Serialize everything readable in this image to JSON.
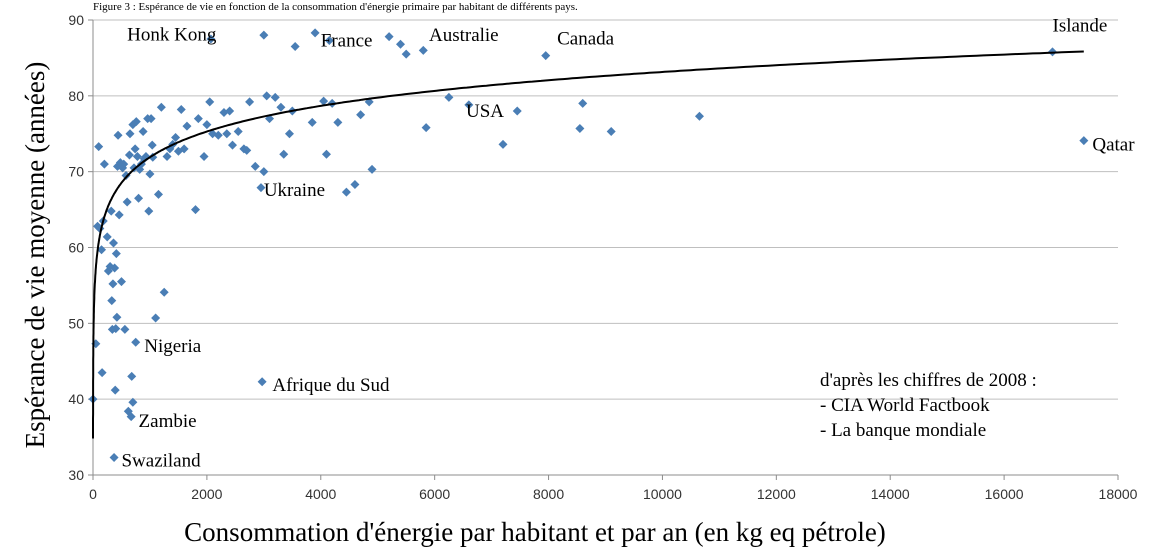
{
  "caption": "Figure 3 : Espérance de vie en fonction de la consommation d'énergie primaire par habitant de différents pays.",
  "source_note": {
    "heading": "d'après les chiffres de 2008 :",
    "lines": [
      "- CIA World Factbook",
      "- La banque mondiale"
    ]
  },
  "colors": {
    "marker": "#4a7eb5",
    "trend": "#000000",
    "grid": "#bfbfbf"
  },
  "chart_data": {
    "type": "scatter",
    "xlabel": "Consommation d'énergie par habitant et par an (en kg eq pétrole)",
    "ylabel": "Espérance de vie moyenne (années)",
    "xlim": [
      0,
      18000
    ],
    "ylim": [
      30,
      90
    ],
    "x_ticks": [
      0,
      2000,
      4000,
      6000,
      8000,
      10000,
      12000,
      14000,
      16000,
      18000
    ],
    "y_ticks": [
      30,
      40,
      50,
      60,
      70,
      80,
      90
    ],
    "grid": "horizontal",
    "marker": "diamond",
    "points": [
      [
        0,
        40
      ],
      [
        50,
        47.3
      ],
      [
        80,
        62.8
      ],
      [
        100,
        73.3
      ],
      [
        120,
        62.5
      ],
      [
        150,
        59.7
      ],
      [
        160,
        43.5
      ],
      [
        180,
        63.5
      ],
      [
        200,
        71
      ],
      [
        250,
        61.4
      ],
      [
        270,
        56.9
      ],
      [
        300,
        57.5
      ],
      [
        320,
        64.8
      ],
      [
        330,
        53
      ],
      [
        340,
        49.2
      ],
      [
        350,
        55.2
      ],
      [
        360,
        60.6
      ],
      [
        370,
        32.3
      ],
      [
        380,
        57.3
      ],
      [
        390,
        41.2
      ],
      [
        400,
        49.3
      ],
      [
        410,
        59.2
      ],
      [
        420,
        50.8
      ],
      [
        430,
        70.7
      ],
      [
        440,
        74.8
      ],
      [
        460,
        64.3
      ],
      [
        480,
        71.2
      ],
      [
        500,
        55.5
      ],
      [
        520,
        70.5
      ],
      [
        540,
        71
      ],
      [
        560,
        49.2
      ],
      [
        580,
        69.5
      ],
      [
        600,
        66
      ],
      [
        620,
        38.4
      ],
      [
        640,
        72.2
      ],
      [
        650,
        75
      ],
      [
        670,
        37.7
      ],
      [
        680,
        43
      ],
      [
        700,
        39.6
      ],
      [
        700,
        76.2
      ],
      [
        720,
        70.5
      ],
      [
        740,
        73
      ],
      [
        750,
        47.5
      ],
      [
        760,
        76.6
      ],
      [
        780,
        72
      ],
      [
        800,
        66.5
      ],
      [
        820,
        70.3
      ],
      [
        850,
        71
      ],
      [
        880,
        75.3
      ],
      [
        900,
        71.7
      ],
      [
        930,
        72
      ],
      [
        960,
        77
      ],
      [
        980,
        64.8
      ],
      [
        1000,
        69.7
      ],
      [
        1020,
        77
      ],
      [
        1040,
        73.5
      ],
      [
        1050,
        71.9
      ],
      [
        1100,
        50.7
      ],
      [
        1150,
        67
      ],
      [
        1200,
        78.5
      ],
      [
        1250,
        54.1
      ],
      [
        1300,
        72
      ],
      [
        1350,
        73
      ],
      [
        1400,
        73.6
      ],
      [
        1450,
        74.5
      ],
      [
        1500,
        72.7
      ],
      [
        1550,
        78.2
      ],
      [
        1600,
        73
      ],
      [
        1650,
        76
      ],
      [
        1800,
        65
      ],
      [
        1850,
        77
      ],
      [
        1950,
        72
      ],
      [
        2000,
        76.2
      ],
      [
        2050,
        79.2
      ],
      [
        2070,
        87.5
      ],
      [
        2100,
        75
      ],
      [
        2200,
        74.8
      ],
      [
        2300,
        77.8
      ],
      [
        2350,
        75
      ],
      [
        2400,
        78
      ],
      [
        2450,
        73.5
      ],
      [
        2550,
        75.3
      ],
      [
        2650,
        73
      ],
      [
        2700,
        72.8
      ],
      [
        2750,
        79.2
      ],
      [
        2850,
        70.7
      ],
      [
        2950,
        67.9
      ],
      [
        2970,
        42.3
      ],
      [
        3000,
        88
      ],
      [
        3000,
        70
      ],
      [
        3050,
        80
      ],
      [
        3100,
        77
      ],
      [
        3200,
        79.8
      ],
      [
        3300,
        78.5
      ],
      [
        3350,
        72.3
      ],
      [
        3450,
        75
      ],
      [
        3500,
        78
      ],
      [
        3550,
        86.5
      ],
      [
        3900,
        88.3
      ],
      [
        3850,
        76.5
      ],
      [
        4050,
        79.3
      ],
      [
        4100,
        72.3
      ],
      [
        4150,
        87.3
      ],
      [
        4200,
        79
      ],
      [
        4300,
        76.5
      ],
      [
        4450,
        67.3
      ],
      [
        4600,
        68.3
      ],
      [
        4700,
        77.5
      ],
      [
        4850,
        79.2
      ],
      [
        4900,
        70.3
      ],
      [
        5200,
        87.8
      ],
      [
        5400,
        86.8
      ],
      [
        5500,
        85.5
      ],
      [
        5800,
        86
      ],
      [
        5850,
        75.8
      ],
      [
        6250,
        79.8
      ],
      [
        6600,
        78.8
      ],
      [
        7200,
        73.6
      ],
      [
        7450,
        78
      ],
      [
        7950,
        85.3
      ],
      [
        8550,
        75.7
      ],
      [
        8600,
        79
      ],
      [
        9100,
        75.3
      ],
      [
        10650,
        77.3
      ],
      [
        16850,
        85.8
      ],
      [
        17400,
        74.1
      ]
    ],
    "trendline": {
      "type": "logarithmic",
      "a": 4.88,
      "b": 38.2
    },
    "annotations": [
      {
        "text": "Honk Kong",
        "x": 600,
        "y": 87.3
      },
      {
        "text": "France",
        "x": 4000,
        "y": 86.5
      },
      {
        "text": "Australie",
        "x": 5900,
        "y": 87.2
      },
      {
        "text": "Canada",
        "x": 8150,
        "y": 86.8
      },
      {
        "text": "Islande",
        "x": 16850,
        "y": 88.5
      },
      {
        "text": "USA",
        "x": 6550,
        "y": 77.2
      },
      {
        "text": "Qatar",
        "x": 17550,
        "y": 72.8
      },
      {
        "text": "Ukraine",
        "x": 3000,
        "y": 66.8
      },
      {
        "text": "Nigeria",
        "x": 900,
        "y": 46.2
      },
      {
        "text": "Afrique du Sud",
        "x": 3150,
        "y": 41.1
      },
      {
        "text": "Zambie",
        "x": 800,
        "y": 36.3
      },
      {
        "text": "Swaziland",
        "x": 500,
        "y": 31.1
      }
    ]
  }
}
